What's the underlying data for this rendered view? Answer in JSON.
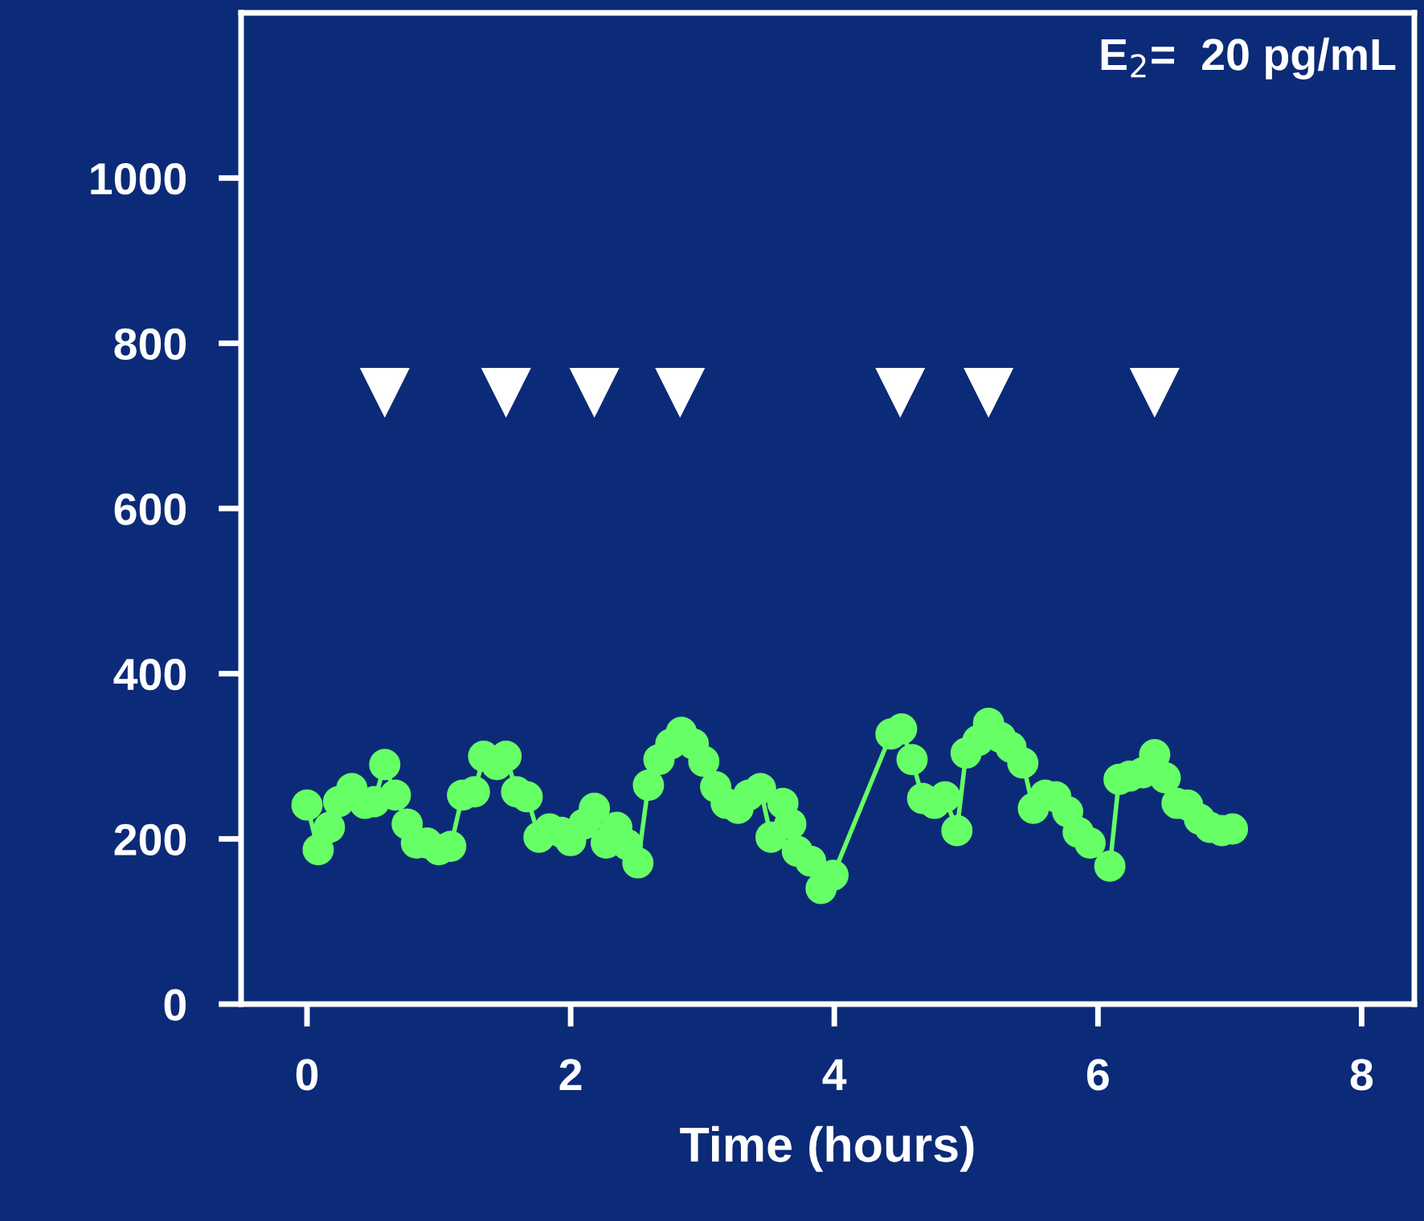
{
  "chart_data": {
    "type": "line",
    "xlabel": "Time (hours)",
    "annotations": [
      "E$_{2}$=  20 pg/mL"
    ],
    "xlim": [
      -0.5,
      8.4
    ],
    "ylim": [
      0,
      1200
    ],
    "xticks": [
      0,
      2,
      4,
      6,
      8
    ],
    "yticks": [
      0,
      200,
      400,
      600,
      800,
      1000
    ],
    "grid": false,
    "legend": false,
    "series": [
      {
        "color": "#66ff66",
        "marker": "circle",
        "line_style": "solid",
        "x": [
          0.0,
          0.085,
          0.17,
          0.24,
          0.34,
          0.44,
          0.51,
          0.59,
          0.67,
          0.76,
          0.83,
          0.91,
          1.0,
          1.09,
          1.18,
          1.27,
          1.34,
          1.44,
          1.51,
          1.59,
          1.67,
          1.76,
          1.84,
          1.93,
          2.0,
          2.1,
          2.18,
          2.27,
          2.35,
          2.43,
          2.51,
          2.59,
          2.67,
          2.76,
          2.84,
          2.93,
          3.01,
          3.1,
          3.18,
          3.27,
          3.35,
          3.44,
          3.52,
          3.61,
          3.67,
          3.72,
          3.82,
          3.9,
          3.99,
          4.43,
          4.51,
          4.59,
          4.67,
          4.76,
          4.84,
          4.93,
          5.0,
          5.09,
          5.17,
          5.26,
          5.34,
          5.43,
          5.51,
          5.6,
          5.68,
          5.77,
          5.85,
          5.94,
          6.09,
          6.16,
          6.24,
          6.34,
          6.43,
          6.51,
          6.6,
          6.68,
          6.77,
          6.85,
          6.94,
          7.02
        ],
        "values": [
          241,
          187,
          214,
          245,
          261,
          243,
          245,
          290,
          253,
          218,
          195,
          195,
          187,
          191,
          253,
          257,
          300,
          290,
          300,
          257,
          251,
          202,
          212,
          208,
          198,
          218,
          237,
          195,
          214,
          193,
          171,
          265,
          296,
          315,
          329,
          315,
          294,
          263,
          243,
          237,
          253,
          261,
          202,
          243,
          218,
          185,
          173,
          140,
          156,
          327,
          333,
          296,
          249,
          243,
          251,
          210,
          304,
          319,
          340,
          323,
          311,
          292,
          237,
          253,
          251,
          233,
          208,
          195,
          167,
          272,
          276,
          280,
          302,
          274,
          243,
          241,
          224,
          214,
          210,
          212
        ]
      },
      {
        "type": "scatter",
        "color": "#ffffff",
        "marker": "triangle",
        "x": [
          0.59,
          1.51,
          2.18,
          2.83,
          4.5,
          5.17,
          6.43
        ],
        "values": [
          740,
          740,
          740,
          740,
          740,
          740,
          740
        ]
      }
    ]
  }
}
